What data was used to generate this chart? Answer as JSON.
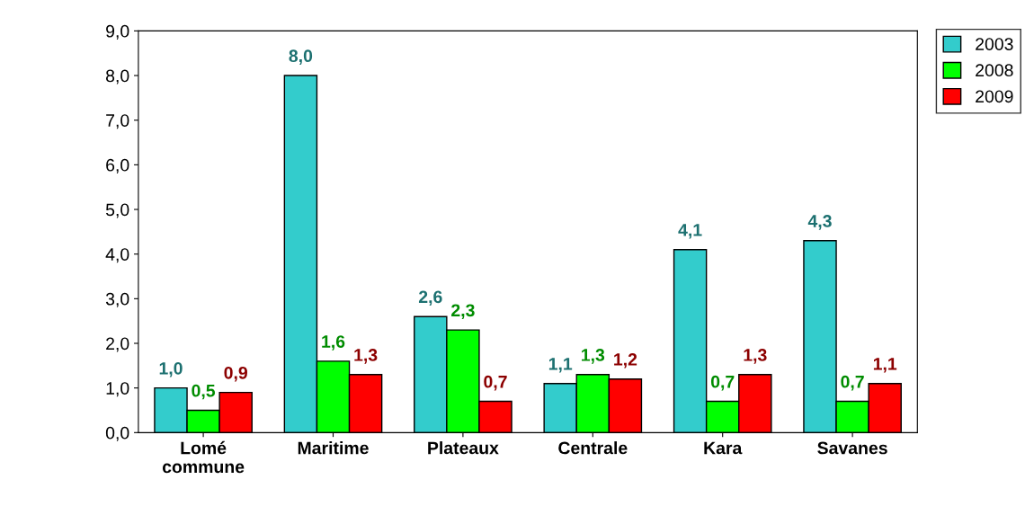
{
  "chart_data": {
    "type": "bar",
    "categories": [
      "Lomé\ncommune",
      "Maritime",
      "Plateaux",
      "Centrale",
      "Kara",
      "Savanes"
    ],
    "series": [
      {
        "name": "2003",
        "color": "#33cccc",
        "values": [
          1.0,
          8.0,
          2.6,
          1.1,
          4.1,
          4.3
        ],
        "value_labels": [
          "1,0",
          "8,0",
          "2,6",
          "1,1",
          "4,1",
          "4,3"
        ]
      },
      {
        "name": "2008",
        "color": "#00ff00",
        "values": [
          0.5,
          1.6,
          2.3,
          1.3,
          0.7,
          0.7
        ],
        "value_labels": [
          "0,5",
          "1,6",
          "2,3",
          "1,3",
          "0,7",
          "0,7"
        ]
      },
      {
        "name": "2009",
        "color": "#ff0000",
        "values": [
          0.9,
          1.3,
          0.7,
          1.2,
          1.3,
          1.1
        ],
        "value_labels": [
          "0,9",
          "1,3",
          "0,7",
          "1,2",
          "1,3",
          "1,1"
        ]
      }
    ],
    "ylim": [
      0,
      9
    ],
    "yticks": [
      {
        "value": 0,
        "label": "0,0"
      },
      {
        "value": 1,
        "label": "1,0"
      },
      {
        "value": 2,
        "label": "2,0"
      },
      {
        "value": 3,
        "label": "3,0"
      },
      {
        "value": 4,
        "label": "4,0"
      },
      {
        "value": 5,
        "label": "5,0"
      },
      {
        "value": 6,
        "label": "6,0"
      },
      {
        "value": 7,
        "label": "7,0"
      },
      {
        "value": 8,
        "label": "8,0"
      },
      {
        "value": 9,
        "label": "9,0"
      }
    ],
    "grid": false,
    "legend": "top right"
  }
}
